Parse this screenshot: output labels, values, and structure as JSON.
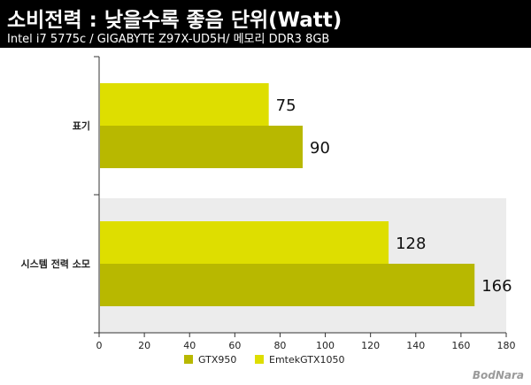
{
  "header": {
    "title": "소비전력 :  낮을수록 좋음 단위(Watt)",
    "subtitle": "Intel i7 5775c / GIGABYTE Z97X-UD5H/ 메모리 DDR3 8GB"
  },
  "watermark": "BodNara",
  "colors": {
    "header_bg": "#000000",
    "header_text": "#ffffff",
    "band": "#ececec"
  },
  "chart_data": {
    "type": "bar",
    "orientation": "horizontal",
    "title": "",
    "xlabel": "",
    "ylabel": "",
    "categories": [
      "표기",
      "시스템 전력 소모"
    ],
    "series": [
      {
        "name": "EmtekGTX1050",
        "color": "#dede00",
        "values": [
          75,
          128
        ]
      },
      {
        "name": "GTX950",
        "color": "#b8b800",
        "values": [
          90,
          166
        ]
      }
    ],
    "xlim": [
      0,
      180
    ],
    "xticks": [
      0,
      20,
      40,
      60,
      80,
      100,
      120,
      140,
      160,
      180
    ],
    "grid": false,
    "legend": {
      "position": "bottom",
      "entries": [
        {
          "name": "GTX950",
          "color": "#b8b800"
        },
        {
          "name": "EmtekGTX1050",
          "color": "#dede00"
        }
      ]
    }
  }
}
